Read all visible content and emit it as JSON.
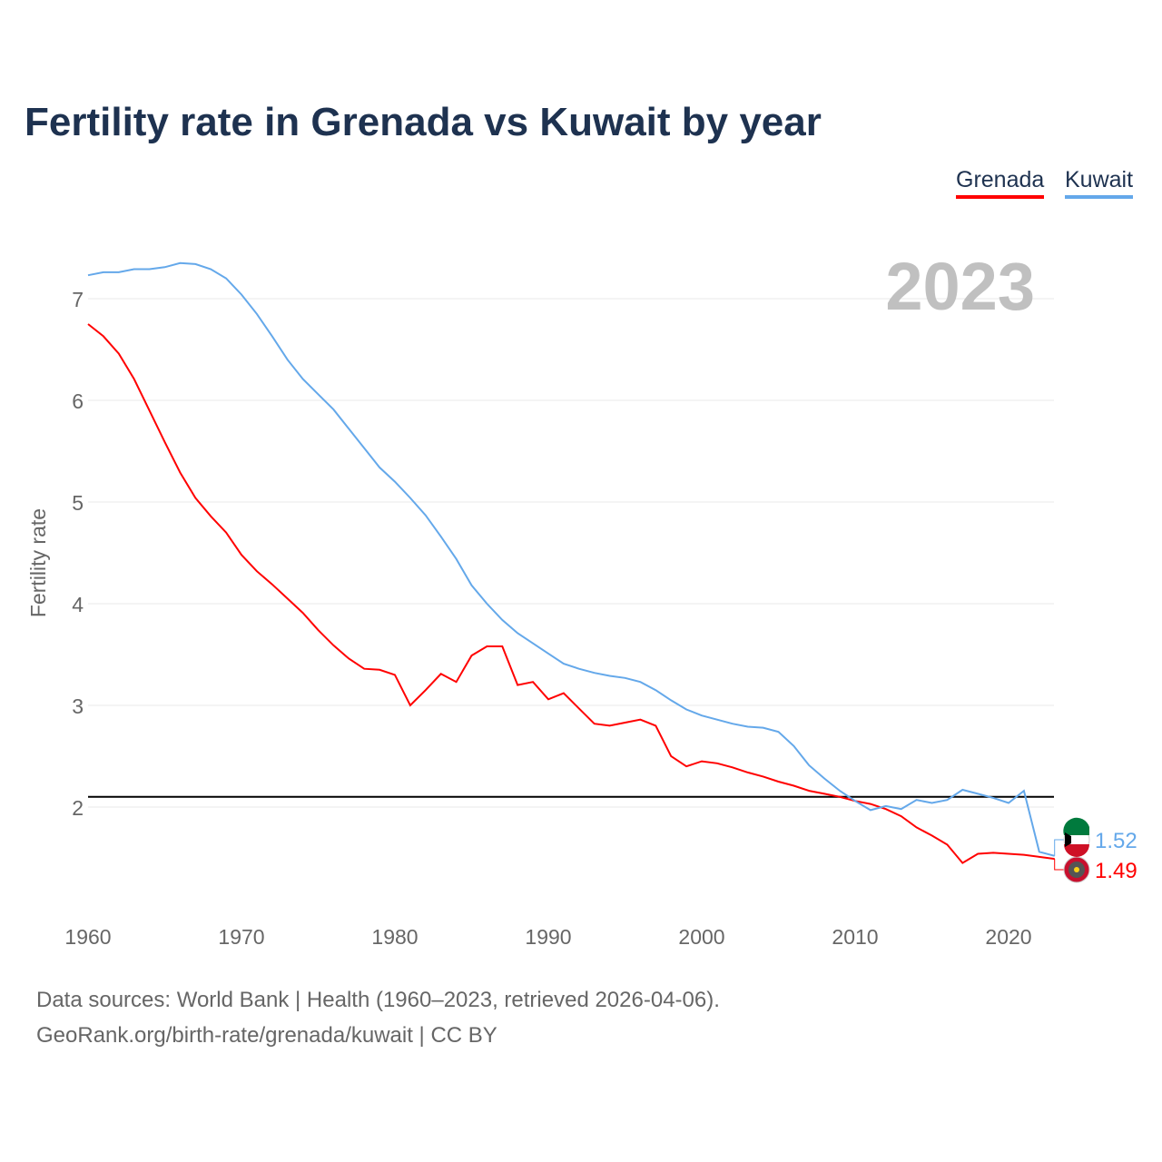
{
  "chart_data": {
    "type": "line",
    "title": "Fertility rate in Grenada vs Kuwait by year",
    "xlabel": "",
    "ylabel": "Fertility rate",
    "xlim": [
      1960,
      2023
    ],
    "ylim": [
      1,
      7.6
    ],
    "x_ticks": [
      1960,
      1970,
      1980,
      1990,
      2000,
      2010,
      2020
    ],
    "y_ticks": [
      2,
      3,
      4,
      5,
      6,
      7
    ],
    "grid": true,
    "legend_position": "top-right",
    "year_label": "2023",
    "reference_line": 2.1,
    "x": [
      1960,
      1961,
      1962,
      1963,
      1964,
      1965,
      1966,
      1967,
      1968,
      1969,
      1970,
      1971,
      1972,
      1973,
      1974,
      1975,
      1976,
      1977,
      1978,
      1979,
      1980,
      1981,
      1982,
      1983,
      1984,
      1985,
      1986,
      1987,
      1988,
      1989,
      1990,
      1991,
      1992,
      1993,
      1994,
      1995,
      1996,
      1997,
      1998,
      1999,
      2000,
      2001,
      2002,
      2003,
      2004,
      2005,
      2006,
      2007,
      2008,
      2009,
      2010,
      2011,
      2012,
      2013,
      2014,
      2015,
      2016,
      2017,
      2018,
      2019,
      2020,
      2021,
      2022,
      2023
    ],
    "series": [
      {
        "name": "Grenada",
        "color": "#ff0000",
        "end_label": "1.49",
        "values": [
          6.75,
          6.63,
          6.46,
          6.21,
          5.9,
          5.59,
          5.29,
          5.04,
          4.86,
          4.7,
          4.48,
          4.32,
          4.19,
          4.05,
          3.91,
          3.74,
          3.59,
          3.46,
          3.36,
          3.35,
          3.3,
          3.0,
          3.15,
          3.31,
          3.23,
          3.49,
          3.58,
          3.58,
          3.2,
          3.23,
          3.06,
          3.12,
          2.97,
          2.82,
          2.8,
          2.83,
          2.86,
          2.8,
          2.5,
          2.4,
          2.45,
          2.43,
          2.39,
          2.34,
          2.3,
          2.25,
          2.21,
          2.16,
          2.13,
          2.1,
          2.06,
          2.03,
          1.98,
          1.91,
          1.8,
          1.72,
          1.63,
          1.45,
          1.54,
          1.55,
          1.54,
          1.53,
          1.51,
          1.49
        ]
      },
      {
        "name": "Kuwait",
        "color": "#64a8ea",
        "end_label": "1.52",
        "values": [
          7.23,
          7.26,
          7.26,
          7.29,
          7.29,
          7.31,
          7.35,
          7.34,
          7.29,
          7.2,
          7.04,
          6.85,
          6.63,
          6.4,
          6.21,
          6.06,
          5.91,
          5.72,
          5.53,
          5.34,
          5.2,
          5.04,
          4.87,
          4.66,
          4.44,
          4.18,
          4.0,
          3.84,
          3.71,
          3.61,
          3.51,
          3.41,
          3.36,
          3.32,
          3.29,
          3.27,
          3.23,
          3.15,
          3.05,
          2.96,
          2.9,
          2.86,
          2.82,
          2.79,
          2.78,
          2.74,
          2.6,
          2.41,
          2.28,
          2.16,
          2.06,
          1.97,
          2.01,
          1.98,
          2.07,
          2.04,
          2.07,
          2.17,
          2.13,
          2.09,
          2.04,
          2.16,
          1.56,
          1.52
        ]
      }
    ]
  },
  "footer": {
    "line1": "Data sources: World Bank | Health (1960–2023, retrieved 2026-04-06).",
    "line2": "GeoRank.org/birth-rate/grenada/kuwait | CC BY"
  }
}
